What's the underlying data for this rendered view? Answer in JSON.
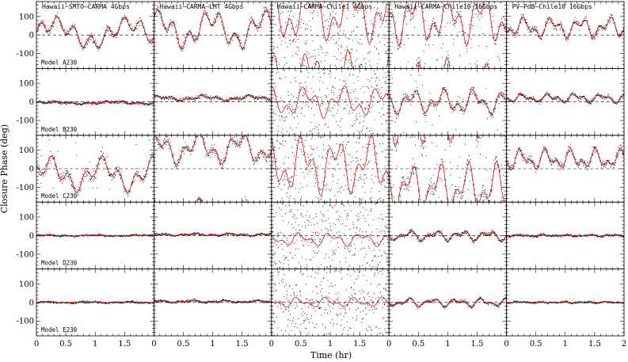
{
  "chart_data": {
    "type": "scatter",
    "xlabel": "Time (hr)",
    "ylabel": "Closure Phase (deg)",
    "xlim": [
      0,
      2
    ],
    "ylim": [
      -180,
      180
    ],
    "x_ticks": [
      "0",
      "0.5",
      "1",
      "1.5"
    ],
    "x_ticks_last": [
      "0",
      "0.5",
      "1",
      "1.5",
      "2"
    ],
    "y_ticks": [
      "-100",
      "0",
      "100"
    ],
    "columns": [
      "Hawaii–SMTO–CARMA 4Gbps",
      "Hawaii–CARMA–LMT 4Gbps",
      "Hawaii–CARMA–Chile1 4Gbps",
      "Hawaii–CARMA–Chile10 16Gbps",
      "PV–PdB–Chile10 16Gbps"
    ],
    "rows": [
      "Model A230",
      "Model B230",
      "Model C230",
      "Model D230",
      "Model E230"
    ],
    "series": [
      {
        "role": "data",
        "color": "#000000",
        "marker": "dot"
      },
      {
        "role": "model",
        "color": "#e8100e",
        "marker": "line"
      }
    ],
    "zero_line": "dashed",
    "panels": [
      [
        {
          "baseline": 10,
          "amp": 90,
          "noise": 18,
          "scatter": 0,
          "wrap": true
        },
        {
          "baseline": 30,
          "amp": 110,
          "noise": 20,
          "scatter": 0,
          "wrap": true
        },
        {
          "baseline": 120,
          "amp": 170,
          "noise": 60,
          "scatter": 0.6,
          "wrap": true
        },
        {
          "baseline": 90,
          "amp": 150,
          "noise": 35,
          "scatter": 0.2,
          "wrap": true
        },
        {
          "baseline": 40,
          "amp": 60,
          "noise": 18,
          "scatter": 0,
          "wrap": false
        }
      ],
      [
        {
          "baseline": -5,
          "amp": 8,
          "noise": 8,
          "scatter": 0,
          "wrap": false
        },
        {
          "baseline": 20,
          "amp": 15,
          "noise": 10,
          "scatter": 0,
          "wrap": false
        },
        {
          "baseline": 0,
          "amp": 90,
          "noise": 40,
          "scatter": 0.8,
          "wrap": false
        },
        {
          "baseline": 0,
          "amp": 70,
          "noise": 20,
          "scatter": 0.1,
          "wrap": false
        },
        {
          "baseline": 20,
          "amp": 25,
          "noise": 10,
          "scatter": 0,
          "wrap": false
        }
      ],
      [
        {
          "baseline": -30,
          "amp": 100,
          "noise": 25,
          "scatter": 0.05,
          "wrap": true
        },
        {
          "baseline": 110,
          "amp": 90,
          "noise": 25,
          "scatter": 0,
          "wrap": true
        },
        {
          "baseline": 20,
          "amp": 170,
          "noise": 70,
          "scatter": 0.5,
          "wrap": true
        },
        {
          "baseline": -100,
          "amp": 140,
          "noise": 40,
          "scatter": 0.15,
          "wrap": true
        },
        {
          "baseline": 50,
          "amp": 60,
          "noise": 20,
          "scatter": 0,
          "wrap": false
        }
      ],
      [
        {
          "baseline": 0,
          "amp": 4,
          "noise": 5,
          "scatter": 0,
          "wrap": false
        },
        {
          "baseline": 5,
          "amp": 6,
          "noise": 6,
          "scatter": 0,
          "wrap": false
        },
        {
          "baseline": -20,
          "amp": 40,
          "noise": 30,
          "scatter": 0.85,
          "wrap": false
        },
        {
          "baseline": 0,
          "amp": 30,
          "noise": 10,
          "scatter": 0,
          "wrap": false
        },
        {
          "baseline": 0,
          "amp": 5,
          "noise": 6,
          "scatter": 0,
          "wrap": false
        }
      ],
      [
        {
          "baseline": 0,
          "amp": 4,
          "noise": 5,
          "scatter": 0,
          "wrap": false
        },
        {
          "baseline": 5,
          "amp": 6,
          "noise": 6,
          "scatter": 0,
          "wrap": false
        },
        {
          "baseline": 0,
          "amp": 30,
          "noise": 30,
          "scatter": 0.85,
          "wrap": false
        },
        {
          "baseline": 0,
          "amp": 25,
          "noise": 8,
          "scatter": 0,
          "wrap": false
        },
        {
          "baseline": 0,
          "amp": 4,
          "noise": 5,
          "scatter": 0,
          "wrap": false
        }
      ]
    ]
  }
}
